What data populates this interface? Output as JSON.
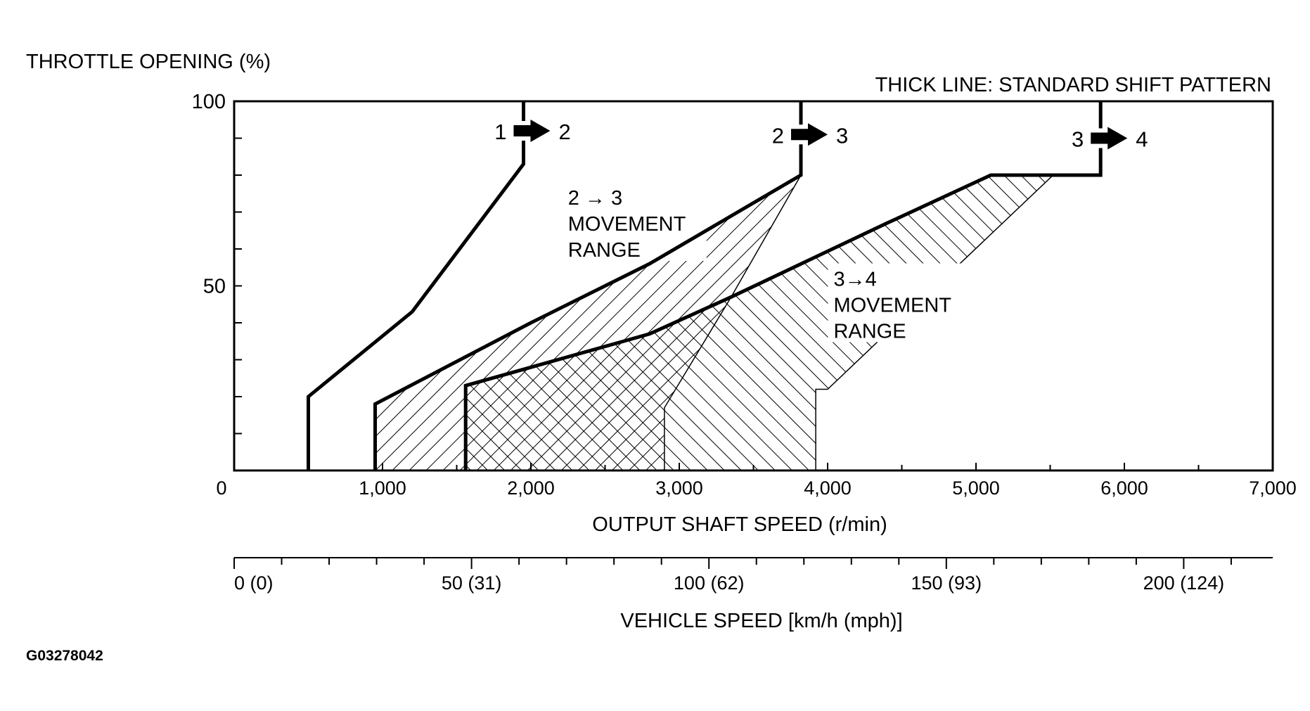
{
  "chart_data": {
    "type": "line",
    "ylabel": "THROTTLE OPENING (%)",
    "note": "THICK LINE: STANDARD SHIFT PATTERN",
    "xlabel": "OUTPUT SHAFT SPEED (r/min)",
    "x2label": "VEHICLE SPEED [km/h (mph)]",
    "figure_id": "G03278042",
    "xlim": [
      0,
      7000
    ],
    "ylim": [
      0,
      100
    ],
    "yticks": [
      0,
      10,
      20,
      30,
      40,
      50,
      60,
      70,
      80,
      90,
      100
    ],
    "ytick_labels": [
      {
        "value": 100,
        "label": "100"
      },
      {
        "value": 50,
        "label": "50"
      }
    ],
    "origin_label": "0",
    "xticks": [
      {
        "value": 1000,
        "label": "1,000"
      },
      {
        "value": 2000,
        "label": "2,000"
      },
      {
        "value": 3000,
        "label": "3,000"
      },
      {
        "value": 4000,
        "label": "4,000"
      },
      {
        "value": 5000,
        "label": "5,000"
      },
      {
        "value": 6000,
        "label": "6,000"
      },
      {
        "value": 7000,
        "label": "7,000"
      }
    ],
    "speed_axis": {
      "rpm_per_kmh": 32,
      "ticks_kmh": [
        0,
        10,
        20,
        30,
        40,
        50,
        60,
        70,
        80,
        90,
        100,
        110,
        120,
        130,
        140,
        150,
        160,
        170,
        180,
        190,
        200,
        210
      ],
      "labels": [
        {
          "kmh": 0,
          "label": "0 (0)"
        },
        {
          "kmh": 50,
          "label": "50 (31)"
        },
        {
          "kmh": 100,
          "label": "100 (62)"
        },
        {
          "kmh": 150,
          "label": "150 (93)"
        },
        {
          "kmh": 200,
          "label": "200 (124)"
        }
      ]
    },
    "series": [
      {
        "label": "1 ➜ 2",
        "from": "1",
        "to": "2",
        "label_at": [
          1950,
          92
        ],
        "points": [
          [
            500,
            0
          ],
          [
            500,
            20
          ],
          [
            1200,
            43
          ],
          [
            1950,
            83
          ],
          [
            1950,
            100
          ]
        ]
      },
      {
        "label": "2 ➜ 3",
        "from": "2",
        "to": "3",
        "label_at": [
          3820,
          91
        ],
        "points": [
          [
            950,
            0
          ],
          [
            950,
            18
          ],
          [
            2000,
            40
          ],
          [
            2800,
            56
          ],
          [
            3820,
            80
          ],
          [
            3820,
            100
          ]
        ]
      },
      {
        "label": "3 ➜ 4",
        "from": "3",
        "to": "4",
        "label_at": [
          5840,
          90
        ],
        "points": [
          [
            1560,
            0
          ],
          [
            1560,
            23
          ],
          [
            2800,
            37
          ],
          [
            3350,
            47
          ],
          [
            4400,
            67
          ],
          [
            5100,
            80
          ],
          [
            5840,
            80
          ],
          [
            5840,
            100
          ]
        ]
      }
    ],
    "regions": [
      {
        "name": "2 → 3 MOVEMENT RANGE",
        "text": [
          "2 → 3",
          "MOVEMENT",
          "RANGE"
        ],
        "label_at": [
          2250,
          72
        ],
        "hatch": "backslash",
        "polygon": [
          [
            950,
            0
          ],
          [
            950,
            18
          ],
          [
            2000,
            40
          ],
          [
            2800,
            56
          ],
          [
            3820,
            80
          ],
          [
            3350,
            47
          ],
          [
            2900,
            17
          ],
          [
            2900,
            0
          ]
        ]
      },
      {
        "name": "3→4 MOVEMENT RANGE",
        "text": [
          "3→4",
          "MOVEMENT",
          "RANGE"
        ],
        "label_at": [
          4040,
          50
        ],
        "hatch": "slash",
        "polygon": [
          [
            1560,
            0
          ],
          [
            1560,
            23
          ],
          [
            2800,
            37
          ],
          [
            3350,
            47
          ],
          [
            4400,
            67
          ],
          [
            5100,
            80
          ],
          [
            5520,
            80
          ],
          [
            4000,
            22
          ],
          [
            3920,
            22
          ],
          [
            3920,
            0
          ]
        ]
      }
    ]
  }
}
